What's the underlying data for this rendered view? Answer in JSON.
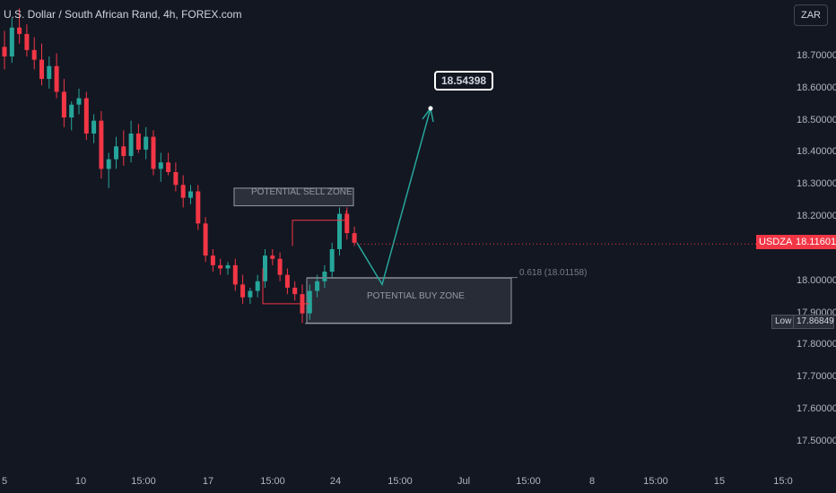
{
  "header": {
    "title": "U.S. Dollar / South African Rand, 4h, FOREX.com",
    "currency_button": "ZAR"
  },
  "price_scale": {
    "symbol_badge": "USDZAR",
    "last_price": "18.11601",
    "low_label": "Low",
    "low_value": "17.86849",
    "ticks": [
      "18.70000",
      "18.60000",
      "18.50000",
      "18.40000",
      "18.30000",
      "18.20000",
      "18.00000",
      "17.90000",
      "17.80000",
      "17.70000",
      "17.60000",
      "17.50000"
    ]
  },
  "time_scale": {
    "ticks": [
      "5",
      "10",
      "15:00",
      "17",
      "15:00",
      "24",
      "15:00",
      "Jul",
      "15:00",
      "8",
      "15:00",
      "15",
      "15:0"
    ]
  },
  "annotations": {
    "sell_zone": "POTENTIAL SELL ZONE",
    "buy_zone": "POTENTIAL BUY ZONE",
    "fib_label": "0.618 (18.01158)",
    "target": "18.54398"
  },
  "colors": {
    "up": "#26a69a",
    "down": "#f23645",
    "background": "#131722",
    "projection": "#26a69a"
  },
  "chart_data": {
    "type": "candlestick",
    "title": "U.S. Dollar / South African Rand, 4h, FOREX.com",
    "y_range": [
      17.45,
      18.78
    ],
    "last_price": 18.11601,
    "low": 17.86849,
    "fib_level": 18.01158,
    "target": 18.54398,
    "sell_zone": [
      18.235,
      18.29
    ],
    "buy_zone": [
      17.87,
      18.01
    ],
    "candles": [
      [
        18.73,
        18.78,
        18.66,
        18.7
      ],
      [
        18.7,
        18.82,
        18.68,
        18.79
      ],
      [
        18.79,
        18.85,
        18.74,
        18.77
      ],
      [
        18.77,
        18.8,
        18.7,
        18.72
      ],
      [
        18.72,
        18.76,
        18.66,
        18.69
      ],
      [
        18.69,
        18.74,
        18.61,
        18.63
      ],
      [
        18.63,
        18.7,
        18.6,
        18.67
      ],
      [
        18.67,
        18.71,
        18.57,
        18.59
      ],
      [
        18.59,
        18.63,
        18.48,
        18.51
      ],
      [
        18.51,
        18.56,
        18.47,
        18.55
      ],
      [
        18.55,
        18.6,
        18.52,
        18.57
      ],
      [
        18.57,
        18.59,
        18.44,
        18.46
      ],
      [
        18.46,
        18.52,
        18.43,
        18.5
      ],
      [
        18.5,
        18.53,
        18.32,
        18.35
      ],
      [
        18.35,
        18.4,
        18.29,
        18.38
      ],
      [
        18.38,
        18.45,
        18.35,
        18.42
      ],
      [
        18.42,
        18.47,
        18.36,
        18.39
      ],
      [
        18.39,
        18.5,
        18.37,
        18.46
      ],
      [
        18.46,
        18.49,
        18.4,
        18.41
      ],
      [
        18.41,
        18.48,
        18.38,
        18.45
      ],
      [
        18.45,
        18.47,
        18.33,
        18.35
      ],
      [
        18.35,
        18.4,
        18.31,
        18.37
      ],
      [
        18.37,
        18.4,
        18.33,
        18.34
      ],
      [
        18.34,
        18.37,
        18.28,
        18.3
      ],
      [
        18.3,
        18.33,
        18.23,
        18.26
      ],
      [
        18.26,
        18.3,
        18.24,
        18.28
      ],
      [
        18.28,
        18.3,
        18.16,
        18.18
      ],
      [
        18.18,
        18.2,
        18.06,
        18.08
      ],
      [
        18.08,
        18.1,
        18.03,
        18.05
      ],
      [
        18.05,
        18.07,
        18.02,
        18.04
      ],
      [
        18.04,
        18.06,
        18.02,
        18.05
      ],
      [
        18.05,
        18.07,
        17.97,
        17.99
      ],
      [
        17.99,
        18.02,
        17.93,
        17.95
      ],
      [
        17.95,
        17.98,
        17.93,
        17.97
      ],
      [
        17.97,
        18.02,
        17.95,
        18.0
      ],
      [
        18.0,
        18.1,
        17.98,
        18.08
      ],
      [
        18.08,
        18.1,
        18.05,
        18.07
      ],
      [
        18.07,
        18.09,
        18.0,
        18.02
      ],
      [
        18.02,
        18.04,
        17.96,
        17.98
      ],
      [
        17.98,
        18.0,
        17.94,
        17.96
      ],
      [
        17.96,
        17.99,
        17.87,
        17.9
      ],
      [
        17.9,
        17.99,
        17.88,
        17.97
      ],
      [
        17.97,
        18.02,
        17.95,
        18.0
      ],
      [
        18.0,
        18.05,
        17.98,
        18.03
      ],
      [
        18.03,
        18.12,
        18.01,
        18.1
      ],
      [
        18.1,
        18.23,
        18.08,
        18.21
      ],
      [
        18.21,
        18.23,
        18.13,
        18.15
      ],
      [
        18.15,
        18.17,
        18.11,
        18.12
      ]
    ]
  }
}
